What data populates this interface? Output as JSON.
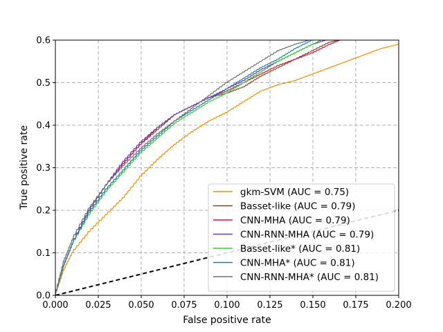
{
  "chart_data": {
    "type": "line",
    "title": "",
    "xlabel": "False positive rate",
    "ylabel": "True positive rate",
    "xlim": [
      0.0,
      0.2
    ],
    "ylim": [
      0.0,
      0.6
    ],
    "xticks": [
      "0.000",
      "0.025",
      "0.050",
      "0.075",
      "0.100",
      "0.125",
      "0.150",
      "0.175",
      "0.200"
    ],
    "yticks": [
      "0.0",
      "0.1",
      "0.2",
      "0.3",
      "0.4",
      "0.5",
      "0.6"
    ],
    "grid": true,
    "legend_position": "lower-right",
    "series": [
      {
        "name": "gkm-SVM (AUC = 0.75)",
        "color": "#ff8c00",
        "x": [
          0.0,
          0.005,
          0.01,
          0.02,
          0.03,
          0.04,
          0.05,
          0.06,
          0.07,
          0.08,
          0.09,
          0.1,
          0.11,
          0.12,
          0.13,
          0.14,
          0.15,
          0.16,
          0.17,
          0.18,
          0.19,
          0.2
        ],
        "y": [
          0.0,
          0.06,
          0.1,
          0.15,
          0.19,
          0.23,
          0.28,
          0.32,
          0.355,
          0.385,
          0.41,
          0.43,
          0.455,
          0.48,
          0.495,
          0.505,
          0.52,
          0.535,
          0.55,
          0.565,
          0.58,
          0.59
        ]
      },
      {
        "name": "Basset-like (AUC = 0.79)",
        "color": "#8b4513",
        "x": [
          0.0,
          0.005,
          0.01,
          0.02,
          0.03,
          0.04,
          0.05,
          0.06,
          0.07,
          0.08,
          0.09,
          0.1,
          0.11,
          0.12,
          0.13,
          0.14,
          0.15,
          0.16,
          0.165
        ],
        "y": [
          0.0,
          0.07,
          0.12,
          0.2,
          0.26,
          0.31,
          0.355,
          0.39,
          0.425,
          0.445,
          0.465,
          0.475,
          0.49,
          0.515,
          0.535,
          0.555,
          0.575,
          0.595,
          0.6
        ]
      },
      {
        "name": "CNN-MHA (AUC = 0.79)",
        "color": "#dc143c",
        "x": [
          0.0,
          0.005,
          0.01,
          0.02,
          0.03,
          0.04,
          0.05,
          0.06,
          0.07,
          0.08,
          0.09,
          0.1,
          0.11,
          0.12,
          0.13,
          0.14,
          0.15,
          0.16,
          0.166
        ],
        "y": [
          0.0,
          0.07,
          0.12,
          0.2,
          0.26,
          0.31,
          0.355,
          0.395,
          0.425,
          0.445,
          0.465,
          0.48,
          0.5,
          0.52,
          0.54,
          0.555,
          0.57,
          0.59,
          0.6
        ]
      },
      {
        "name": "CNN-RNN-MHA (AUC = 0.79)",
        "color": "#6a3dc8",
        "x": [
          0.0,
          0.005,
          0.01,
          0.02,
          0.03,
          0.04,
          0.05,
          0.06,
          0.07,
          0.08,
          0.09,
          0.1,
          0.11,
          0.12,
          0.13,
          0.14,
          0.15,
          0.158
        ],
        "y": [
          0.0,
          0.07,
          0.12,
          0.2,
          0.26,
          0.315,
          0.36,
          0.395,
          0.425,
          0.445,
          0.465,
          0.485,
          0.505,
          0.53,
          0.55,
          0.57,
          0.59,
          0.6
        ]
      },
      {
        "name": "Basset-like* (AUC = 0.81)",
        "color": "#32cd32",
        "x": [
          0.0,
          0.005,
          0.01,
          0.02,
          0.03,
          0.04,
          0.05,
          0.06,
          0.07,
          0.08,
          0.09,
          0.1,
          0.11,
          0.12,
          0.13,
          0.14,
          0.15,
          0.155
        ],
        "y": [
          0.0,
          0.07,
          0.12,
          0.19,
          0.245,
          0.29,
          0.335,
          0.37,
          0.405,
          0.43,
          0.455,
          0.475,
          0.5,
          0.525,
          0.55,
          0.57,
          0.59,
          0.6
        ]
      },
      {
        "name": "CNN-MHA* (AUC = 0.81)",
        "color": "#1f7ea8",
        "x": [
          0.0,
          0.005,
          0.01,
          0.02,
          0.03,
          0.04,
          0.05,
          0.06,
          0.07,
          0.08,
          0.09,
          0.1,
          0.11,
          0.12,
          0.13,
          0.14,
          0.15
        ],
        "y": [
          0.0,
          0.07,
          0.12,
          0.195,
          0.25,
          0.295,
          0.34,
          0.375,
          0.41,
          0.435,
          0.46,
          0.485,
          0.51,
          0.535,
          0.555,
          0.58,
          0.6
        ]
      },
      {
        "name": "CNN-RNN-MHA* (AUC = 0.81)",
        "color": "#6e6e6e",
        "x": [
          0.0,
          0.005,
          0.01,
          0.02,
          0.03,
          0.04,
          0.05,
          0.06,
          0.07,
          0.08,
          0.09,
          0.1,
          0.11,
          0.12,
          0.13,
          0.14,
          0.148
        ],
        "y": [
          0.0,
          0.08,
          0.13,
          0.205,
          0.26,
          0.305,
          0.345,
          0.38,
          0.41,
          0.44,
          0.47,
          0.5,
          0.525,
          0.55,
          0.575,
          0.59,
          0.6
        ]
      }
    ],
    "reference_line": {
      "style": "dashed",
      "color": "#000000",
      "x": [
        0.0,
        0.2
      ],
      "y": [
        0.0,
        0.2
      ]
    }
  }
}
